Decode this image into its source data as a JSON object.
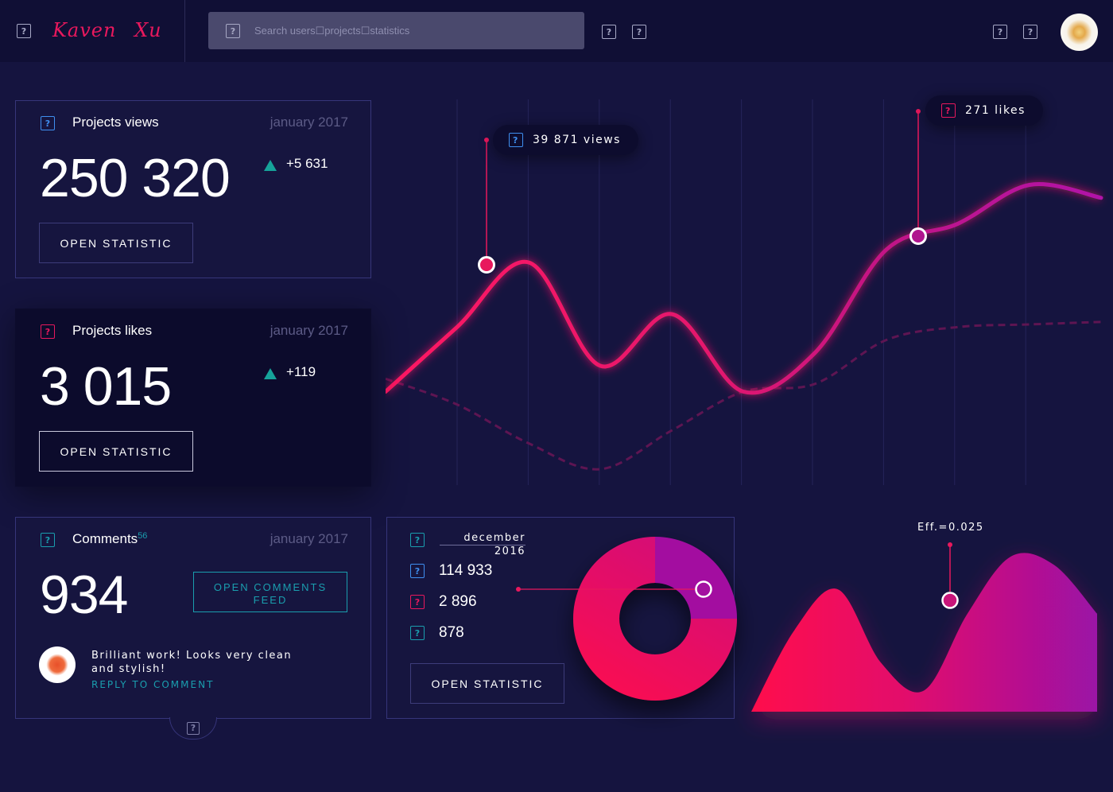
{
  "header": {
    "logo": "Kaven Xu",
    "search_placeholder": "Search users☐projects☐statistics",
    "icons": [
      "menu-icon",
      "search-icon",
      "notifications-icon",
      "messages-icon",
      "settings-icon",
      "profile-icon"
    ]
  },
  "cards": {
    "views": {
      "title": "Projects views",
      "date": "january 2017",
      "value": "250 320",
      "delta": "+5 631",
      "button": "OPEN STATISTIC"
    },
    "likes": {
      "title": "Projects likes",
      "date": "january 2017",
      "value": "3 015",
      "delta": "+119",
      "button": "OPEN STATISTIC"
    },
    "comments": {
      "title": "Comments",
      "badge": "56",
      "date": "january 2017",
      "value": "934",
      "button_line1": "OPEN COMMENTS",
      "button_line2": "FEED",
      "comment_text": "Brilliant work! Looks very clean and stylish!",
      "reply": "REPLY TO COMMENT"
    }
  },
  "donut_card": {
    "month": "december",
    "year": "2016",
    "stats": [
      "114 933",
      "2 896",
      "878"
    ],
    "button": "OPEN STATISTIC"
  },
  "tooltips": {
    "views": "39 871 views",
    "likes": "271 likes",
    "eff": "Eff.=0.025"
  },
  "colors": {
    "bg": "#15143f",
    "accent": "#e8185d",
    "purple": "#a311a0",
    "teal": "#1a9eae",
    "blue": "#3f8ff0"
  },
  "chart_data": {
    "type": "line",
    "title": "",
    "x": [
      0,
      1,
      2,
      3,
      4,
      5,
      6,
      7,
      8,
      9,
      10
    ],
    "series": [
      {
        "name": "views",
        "style": "solid",
        "values": [
          3,
          5.5,
          8,
          4,
          6,
          3,
          4.5,
          8.5,
          9.5,
          11,
          10.5
        ]
      },
      {
        "name": "likes",
        "style": "dashed",
        "values": [
          3.5,
          2.5,
          1,
          0,
          1.5,
          3,
          3.3,
          5,
          5.5,
          5.6,
          5.7
        ]
      }
    ],
    "ylim": [
      0,
      12
    ],
    "donut": {
      "segments": [
        {
          "name": "purple",
          "value": 25
        },
        {
          "name": "pink",
          "value": 75
        }
      ]
    },
    "area": {
      "name": "efficiency",
      "values": [
        0,
        5,
        7.5,
        3,
        1.3,
        6,
        9.5,
        9,
        6
      ]
    }
  }
}
